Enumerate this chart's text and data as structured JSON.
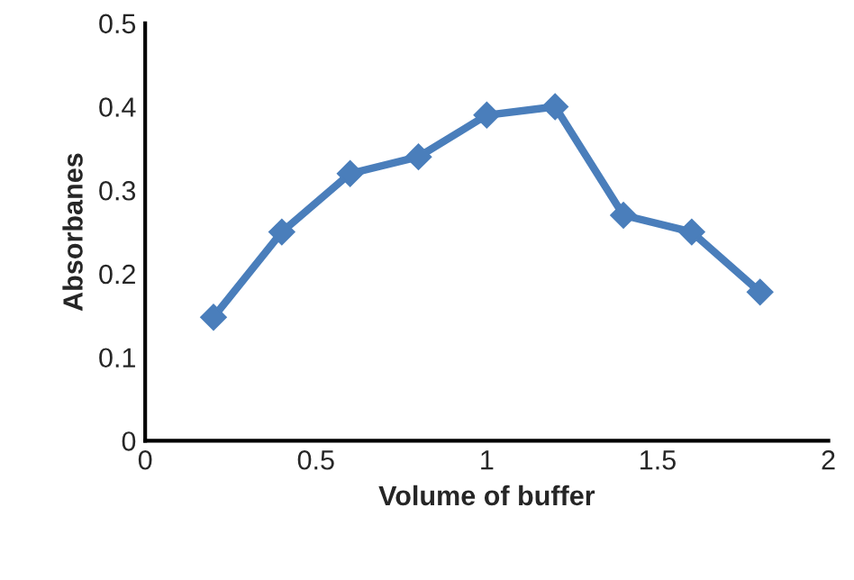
{
  "chart_data": {
    "type": "line",
    "xlabel": "Volume of buffer",
    "ylabel": "Absorbanes",
    "x": [
      0.2,
      0.4,
      0.6,
      0.8,
      1.0,
      1.2,
      1.4,
      1.6,
      1.8
    ],
    "series": [
      {
        "color": "#4a7ebb",
        "values": [
          0.148,
          0.25,
          0.32,
          0.34,
          0.39,
          0.4,
          0.27,
          0.25,
          0.178
        ]
      }
    ],
    "xlim": [
      0,
      2
    ],
    "xticks": [
      0,
      0.5,
      1,
      1.5,
      2
    ],
    "ylim": [
      0,
      0.5
    ],
    "yticks": [
      0,
      0.1,
      0.2,
      0.3,
      0.4,
      0.5
    ],
    "marker": "diamond",
    "line_style": "solid",
    "grid": false,
    "legend": false
  }
}
